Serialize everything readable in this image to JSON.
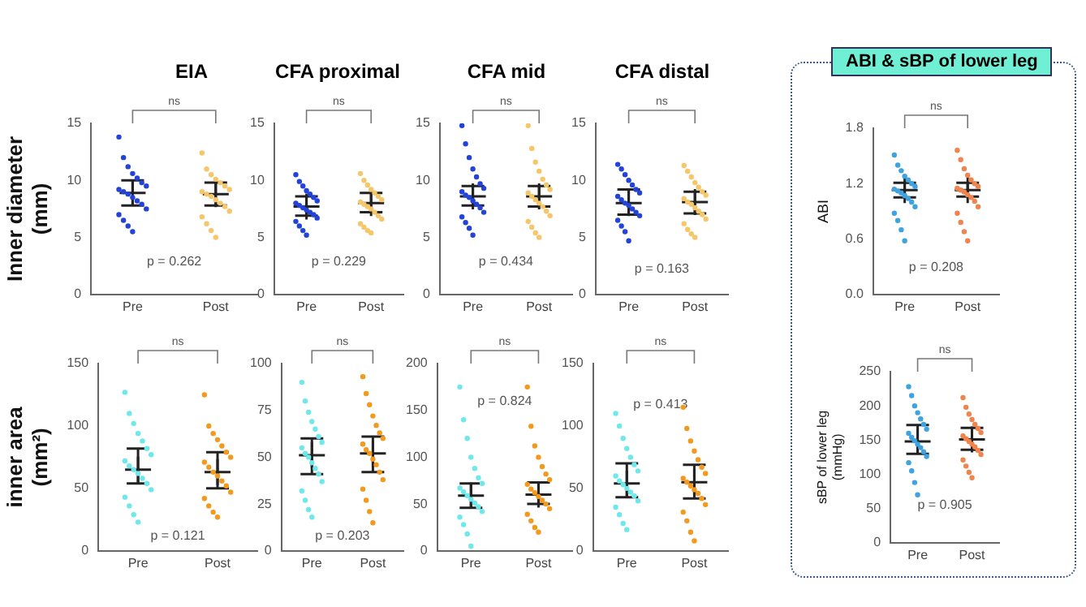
{
  "chart_data": [
    {
      "type": "scatter",
      "title": "EIA",
      "ylabel": "Inner diameter (mm)",
      "categories": [
        "Pre",
        "Post"
      ],
      "ylim": [
        0,
        15
      ],
      "yticks": [
        0,
        5,
        10,
        15
      ],
      "marker": "circle",
      "annotations": [
        "ns",
        "p = 0.262"
      ],
      "series": [
        {
          "color": "#2343d8",
          "x": [
            "Pre",
            "Pre",
            "Pre",
            "Pre",
            "Pre",
            "Pre",
            "Pre",
            "Pre",
            "Pre",
            "Pre",
            "Pre",
            "Pre",
            "Pre",
            "Pre",
            "Pre",
            "Pre",
            "Pre",
            "Pre"
          ],
          "values": [
            13.8,
            12.0,
            11.2,
            10.6,
            10.2,
            9.8,
            9.5,
            9.2,
            9.0,
            8.8,
            8.5,
            8.2,
            7.9,
            7.5,
            7.0,
            6.5,
            6.0,
            5.5
          ]
        },
        {
          "color": "#f5c66a",
          "x": [
            "Post",
            "Post",
            "Post",
            "Post",
            "Post",
            "Post",
            "Post",
            "Post",
            "Post",
            "Post",
            "Post",
            "Post",
            "Post",
            "Post",
            "Post",
            "Post",
            "Post",
            "Post"
          ],
          "values": [
            12.4,
            11.0,
            10.5,
            10.1,
            9.8,
            9.5,
            9.2,
            9.0,
            8.8,
            8.6,
            8.3,
            8.0,
            7.7,
            7.3,
            6.8,
            6.2,
            5.6,
            5.0
          ]
        },
        {
          "color": "#222222",
          "marker": "cross",
          "x": [
            "Pre",
            "Post"
          ],
          "values": [
            8.9,
            8.8
          ],
          "errors": [
            [
              7.8,
              10.0
            ],
            [
              7.8,
              9.8
            ]
          ]
        }
      ]
    },
    {
      "type": "scatter",
      "title": "CFA proximal",
      "categories": [
        "Pre",
        "Post"
      ],
      "ylim": [
        0,
        15
      ],
      "yticks": [
        0,
        5,
        10,
        15
      ],
      "marker": "circle",
      "annotations": [
        "ns",
        "p = 0.229"
      ],
      "series": [
        {
          "color": "#2343d8",
          "x": [
            "Pre",
            "Pre",
            "Pre",
            "Pre",
            "Pre",
            "Pre",
            "Pre",
            "Pre",
            "Pre",
            "Pre",
            "Pre",
            "Pre",
            "Pre",
            "Pre",
            "Pre",
            "Pre",
            "Pre",
            "Pre"
          ],
          "values": [
            10.5,
            9.9,
            9.5,
            9.1,
            8.8,
            8.5,
            8.2,
            8.0,
            7.8,
            7.6,
            7.4,
            7.2,
            7.0,
            6.7,
            6.4,
            6.0,
            5.6,
            5.2
          ]
        },
        {
          "color": "#f5c66a",
          "x": [
            "Post",
            "Post",
            "Post",
            "Post",
            "Post",
            "Post",
            "Post",
            "Post",
            "Post",
            "Post",
            "Post",
            "Post",
            "Post",
            "Post",
            "Post",
            "Post",
            "Post",
            "Post"
          ],
          "values": [
            10.6,
            10.0,
            9.6,
            9.2,
            8.9,
            8.6,
            8.3,
            8.1,
            7.9,
            7.7,
            7.5,
            7.2,
            6.9,
            6.6,
            6.2,
            5.9,
            5.6,
            5.4
          ]
        },
        {
          "color": "#222222",
          "marker": "cross",
          "x": [
            "Pre",
            "Post"
          ],
          "values": [
            7.7,
            8.0
          ],
          "errors": [
            [
              6.9,
              8.6
            ],
            [
              7.2,
              8.9
            ]
          ]
        }
      ]
    },
    {
      "type": "scatter",
      "title": "CFA mid",
      "categories": [
        "Pre",
        "Post"
      ],
      "ylim": [
        0,
        15
      ],
      "yticks": [
        0,
        5,
        10,
        15
      ],
      "marker": "circle",
      "annotations": [
        "ns",
        "p = 0.434"
      ],
      "series": [
        {
          "color": "#2343d8",
          "x": [
            "Pre",
            "Pre",
            "Pre",
            "Pre",
            "Pre",
            "Pre",
            "Pre",
            "Pre",
            "Pre",
            "Pre",
            "Pre",
            "Pre",
            "Pre",
            "Pre",
            "Pre",
            "Pre",
            "Pre",
            "Pre"
          ],
          "values": [
            14.8,
            13.2,
            12.0,
            11.0,
            10.3,
            9.7,
            9.3,
            9.0,
            8.7,
            8.5,
            8.2,
            7.9,
            7.6,
            7.2,
            6.8,
            6.3,
            5.8,
            5.2
          ]
        },
        {
          "color": "#f5c66a",
          "x": [
            "Post",
            "Post",
            "Post",
            "Post",
            "Post",
            "Post",
            "Post",
            "Post",
            "Post",
            "Post",
            "Post",
            "Post",
            "Post",
            "Post",
            "Post",
            "Post",
            "Post",
            "Post"
          ],
          "values": [
            14.8,
            12.8,
            11.6,
            10.8,
            10.1,
            9.6,
            9.2,
            8.9,
            8.6,
            8.3,
            8.0,
            7.7,
            7.3,
            6.9,
            6.4,
            5.9,
            5.4,
            5.0
          ]
        },
        {
          "color": "#222222",
          "marker": "cross",
          "x": [
            "Pre",
            "Post"
          ],
          "values": [
            8.6,
            8.6
          ],
          "errors": [
            [
              7.8,
              9.5
            ],
            [
              7.7,
              9.5
            ]
          ]
        }
      ]
    },
    {
      "type": "scatter",
      "title": "CFA distal",
      "categories": [
        "Pre",
        "Post"
      ],
      "ylim": [
        0,
        15
      ],
      "yticks": [
        0,
        5,
        10,
        15
      ],
      "marker": "circle",
      "annotations": [
        "ns",
        "p = 0.163"
      ],
      "series": [
        {
          "color": "#2343d8",
          "x": [
            "Pre",
            "Pre",
            "Pre",
            "Pre",
            "Pre",
            "Pre",
            "Pre",
            "Pre",
            "Pre",
            "Pre",
            "Pre",
            "Pre",
            "Pre",
            "Pre",
            "Pre",
            "Pre",
            "Pre",
            "Pre"
          ],
          "values": [
            11.4,
            11.0,
            10.5,
            10.0,
            9.6,
            9.2,
            8.9,
            8.6,
            8.3,
            8.0,
            7.8,
            7.5,
            7.2,
            6.9,
            6.5,
            6.0,
            5.5,
            4.7
          ]
        },
        {
          "color": "#f5c66a",
          "x": [
            "Post",
            "Post",
            "Post",
            "Post",
            "Post",
            "Post",
            "Post",
            "Post",
            "Post",
            "Post",
            "Post",
            "Post",
            "Post",
            "Post",
            "Post",
            "Post",
            "Post",
            "Post"
          ],
          "values": [
            11.3,
            10.8,
            10.3,
            9.8,
            9.4,
            9.0,
            8.7,
            8.4,
            8.1,
            7.9,
            7.6,
            7.3,
            7.0,
            6.6,
            6.2,
            5.7,
            5.3,
            5.0
          ]
        },
        {
          "color": "#222222",
          "marker": "cross",
          "x": [
            "Pre",
            "Post"
          ],
          "values": [
            8.0,
            8.1
          ],
          "errors": [
            [
              7.0,
              9.2
            ],
            [
              7.1,
              9.0
            ]
          ]
        }
      ]
    },
    {
      "type": "scatter",
      "title": "ABI & sBP of lower leg",
      "ylabel": "ABI",
      "categories": [
        "Pre",
        "Post"
      ],
      "ylim": [
        0,
        1.8
      ],
      "yticks": [
        {
          "value": 0,
          "label": "0.0"
        },
        0.6,
        1.2,
        1.8
      ],
      "marker": "circle",
      "annotations": [
        "ns",
        "p = 0.208"
      ],
      "series": [
        {
          "color": "#3fa3e0",
          "x": [
            "Pre",
            "Pre",
            "Pre",
            "Pre",
            "Pre",
            "Pre",
            "Pre",
            "Pre",
            "Pre",
            "Pre",
            "Pre",
            "Pre",
            "Pre",
            "Pre",
            "Pre",
            "Pre",
            "Pre",
            "Pre"
          ],
          "values": [
            1.51,
            1.4,
            1.34,
            1.28,
            1.24,
            1.2,
            1.17,
            1.14,
            1.12,
            1.1,
            1.07,
            1.04,
            1.0,
            0.95,
            0.88,
            0.8,
            0.7,
            0.58
          ]
        },
        {
          "color": "#f0844e",
          "x": [
            "Post",
            "Post",
            "Post",
            "Post",
            "Post",
            "Post",
            "Post",
            "Post",
            "Post",
            "Post",
            "Post",
            "Post",
            "Post",
            "Post",
            "Post",
            "Post",
            "Post",
            "Post"
          ],
          "values": [
            1.56,
            1.46,
            1.36,
            1.29,
            1.24,
            1.2,
            1.17,
            1.15,
            1.13,
            1.11,
            1.08,
            1.05,
            1.01,
            0.95,
            0.88,
            0.78,
            0.68,
            0.58
          ]
        },
        {
          "color": "#222222",
          "marker": "cross",
          "x": [
            "Pre",
            "Post"
          ],
          "values": [
            1.13,
            1.13
          ],
          "errors": [
            [
              1.05,
              1.21
            ],
            [
              1.06,
              1.21
            ]
          ]
        }
      ]
    },
    {
      "type": "scatter",
      "ylabel": "inner area (mm²)",
      "categories": [
        "Pre",
        "Post"
      ],
      "ylim": [
        0,
        150
      ],
      "yticks": [
        0,
        50,
        100,
        150
      ],
      "marker": "circle",
      "annotations": [
        "ns",
        "p = 0.121"
      ],
      "series": [
        {
          "color": "#6ee8ea",
          "x": [
            "Pre",
            "Pre",
            "Pre",
            "Pre",
            "Pre",
            "Pre",
            "Pre",
            "Pre",
            "Pre",
            "Pre",
            "Pre",
            "Pre",
            "Pre",
            "Pre",
            "Pre",
            "Pre",
            "Pre",
            "Pre"
          ],
          "values": [
            127,
            110,
            102,
            94,
            88,
            82,
            77,
            72,
            68,
            65,
            62,
            58,
            54,
            49,
            43,
            36,
            29,
            23
          ]
        },
        {
          "color": "#f39a1e",
          "x": [
            "Post",
            "Post",
            "Post",
            "Post",
            "Post",
            "Post",
            "Post",
            "Post",
            "Post",
            "Post",
            "Post",
            "Post",
            "Post",
            "Post",
            "Post",
            "Post",
            "Post",
            "Post"
          ],
          "values": [
            125,
            100,
            94,
            89,
            84,
            79,
            75,
            71,
            67,
            63,
            60,
            56,
            52,
            47,
            42,
            36,
            31,
            27
          ]
        },
        {
          "color": "#222222",
          "marker": "cross",
          "x": [
            "Pre",
            "Post"
          ],
          "values": [
            65,
            63
          ],
          "errors": [
            [
              54,
              82
            ],
            [
              50,
              79
            ]
          ]
        }
      ]
    },
    {
      "type": "scatter",
      "categories": [
        "Pre",
        "Post"
      ],
      "ylim": [
        0,
        100
      ],
      "yticks": [
        0,
        25,
        50,
        75,
        100
      ],
      "marker": "circle",
      "annotations": [
        "ns",
        "p = 0.203"
      ],
      "series": [
        {
          "color": "#6ee8ea",
          "x": [
            "Pre",
            "Pre",
            "Pre",
            "Pre",
            "Pre",
            "Pre",
            "Pre",
            "Pre",
            "Pre",
            "Pre",
            "Pre",
            "Pre",
            "Pre",
            "Pre",
            "Pre",
            "Pre",
            "Pre",
            "Pre"
          ],
          "values": [
            90,
            80,
            74,
            69,
            65,
            61,
            58,
            55,
            52,
            50,
            47,
            44,
            41,
            37,
            32,
            27,
            22,
            18
          ]
        },
        {
          "color": "#f39a1e",
          "x": [
            "Post",
            "Post",
            "Post",
            "Post",
            "Post",
            "Post",
            "Post",
            "Post",
            "Post",
            "Post",
            "Post",
            "Post",
            "Post",
            "Post",
            "Post",
            "Post",
            "Post",
            "Post"
          ],
          "values": [
            93,
            84,
            78,
            72,
            67,
            63,
            60,
            57,
            54,
            52,
            49,
            46,
            42,
            38,
            33,
            27,
            21,
            15
          ]
        },
        {
          "color": "#222222",
          "marker": "cross",
          "x": [
            "Pre",
            "Post"
          ],
          "values": [
            51,
            52
          ],
          "errors": [
            [
              41,
              60
            ],
            [
              42,
              61
            ]
          ]
        }
      ]
    },
    {
      "type": "scatter",
      "categories": [
        "Pre",
        "Post"
      ],
      "ylim": [
        0,
        200
      ],
      "yticks": [
        0,
        50,
        100,
        150,
        200
      ],
      "marker": "circle",
      "annotations": [
        "ns",
        "p = 0.824"
      ],
      "series": [
        {
          "color": "#6ee8ea",
          "x": [
            "Pre",
            "Pre",
            "Pre",
            "Pre",
            "Pre",
            "Pre",
            "Pre",
            "Pre",
            "Pre",
            "Pre",
            "Pre",
            "Pre",
            "Pre",
            "Pre",
            "Pre",
            "Pre",
            "Pre",
            "Pre"
          ],
          "values": [
            175,
            140,
            120,
            100,
            88,
            78,
            72,
            67,
            63,
            59,
            55,
            51,
            47,
            42,
            36,
            28,
            18,
            5
          ]
        },
        {
          "color": "#f39a1e",
          "x": [
            "Post",
            "Post",
            "Post",
            "Post",
            "Post",
            "Post",
            "Post",
            "Post",
            "Post",
            "Post",
            "Post",
            "Post",
            "Post",
            "Post",
            "Post",
            "Post",
            "Post",
            "Post"
          ],
          "values": [
            175,
            133,
            112,
            100,
            90,
            82,
            76,
            71,
            66,
            62,
            58,
            54,
            50,
            45,
            39,
            32,
            25,
            20
          ]
        },
        {
          "color": "#222222",
          "marker": "cross",
          "x": [
            "Pre",
            "Post"
          ],
          "values": [
            59,
            60
          ],
          "errors": [
            [
              46,
              72
            ],
            [
              50,
              73
            ]
          ]
        }
      ]
    },
    {
      "type": "scatter",
      "categories": [
        "Pre",
        "Post"
      ],
      "ylim": [
        0,
        150
      ],
      "yticks": [
        0,
        50,
        100,
        150
      ],
      "marker": "circle",
      "annotations": [
        "ns",
        "p = 0.413"
      ],
      "series": [
        {
          "color": "#6ee8ea",
          "x": [
            "Pre",
            "Pre",
            "Pre",
            "Pre",
            "Pre",
            "Pre",
            "Pre",
            "Pre",
            "Pre",
            "Pre",
            "Pre",
            "Pre",
            "Pre",
            "Pre",
            "Pre",
            "Pre",
            "Pre",
            "Pre"
          ],
          "values": [
            110,
            100,
            90,
            82,
            75,
            69,
            64,
            60,
            56,
            53,
            50,
            47,
            44,
            40,
            35,
            29,
            22,
            17
          ]
        },
        {
          "color": "#f39a1e",
          "x": [
            "Post",
            "Post",
            "Post",
            "Post",
            "Post",
            "Post",
            "Post",
            "Post",
            "Post",
            "Post",
            "Post",
            "Post",
            "Post",
            "Post",
            "Post",
            "Post",
            "Post",
            "Post"
          ],
          "values": [
            115,
            98,
            88,
            80,
            73,
            67,
            62,
            58,
            55,
            52,
            49,
            46,
            42,
            37,
            31,
            24,
            15,
            8
          ]
        },
        {
          "color": "#222222",
          "marker": "cross",
          "x": [
            "Pre",
            "Post"
          ],
          "values": [
            54,
            55
          ],
          "errors": [
            [
              43,
              70
            ],
            [
              42,
              69
            ]
          ]
        }
      ]
    },
    {
      "type": "scatter",
      "ylabel": "sBP of lower leg (mmHg)",
      "categories": [
        "Pre",
        "Post"
      ],
      "ylim": [
        0,
        250
      ],
      "yticks": [
        0,
        50,
        100,
        150,
        200,
        250
      ],
      "marker": "circle",
      "annotations": [
        "ns",
        "p = 0.905"
      ],
      "series": [
        {
          "color": "#3fa3e0",
          "x": [
            "Pre",
            "Pre",
            "Pre",
            "Pre",
            "Pre",
            "Pre",
            "Pre",
            "Pre",
            "Pre",
            "Pre",
            "Pre",
            "Pre",
            "Pre",
            "Pre",
            "Pre",
            "Pre",
            "Pre",
            "Pre"
          ],
          "values": [
            228,
            215,
            200,
            190,
            181,
            173,
            166,
            160,
            154,
            149,
            144,
            139,
            133,
            126,
            117,
            105,
            88,
            70
          ]
        },
        {
          "color": "#f0844e",
          "x": [
            "Post",
            "Post",
            "Post",
            "Post",
            "Post",
            "Post",
            "Post",
            "Post",
            "Post",
            "Post",
            "Post",
            "Post",
            "Post",
            "Post",
            "Post",
            "Post",
            "Post",
            "Post"
          ],
          "values": [
            212,
            198,
            188,
            180,
            173,
            167,
            161,
            156,
            152,
            148,
            144,
            140,
            135,
            129,
            121,
            112,
            103,
            95
          ]
        },
        {
          "color": "#222222",
          "marker": "cross",
          "x": [
            "Pre",
            "Post"
          ],
          "values": [
            148,
            151
          ],
          "errors": [
            [
              130,
              172
            ],
            [
              136,
              168
            ]
          ]
        }
      ]
    }
  ]
}
